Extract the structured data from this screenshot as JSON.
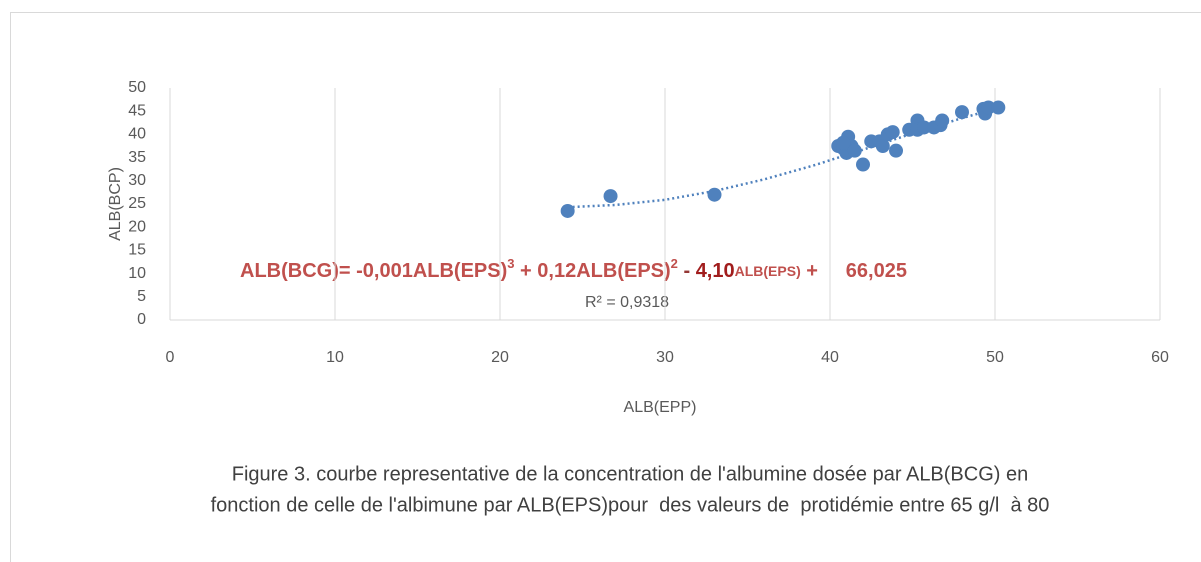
{
  "chart_data": {
    "type": "scatter",
    "xlabel": "ALB(EPP)",
    "ylabel": "ALB(BCP)",
    "xlim": [
      0,
      60
    ],
    "xticks": [
      0,
      10,
      20,
      30,
      40,
      50,
      60
    ],
    "ylim": [
      0,
      50
    ],
    "yticks": [
      0,
      5,
      10,
      15,
      20,
      25,
      30,
      35,
      40,
      45,
      50
    ],
    "grid": "x",
    "series": [
      {
        "color": "#4f81bd",
        "x": [
          24.1,
          26.7,
          33,
          40.5,
          40.8,
          41,
          41,
          41.1,
          41.3,
          41.5,
          42,
          42.5,
          43,
          43.2,
          43.5,
          43.8,
          44,
          44.8,
          45.3,
          45.3,
          45.7,
          46.3,
          46.7,
          46.8,
          48,
          49.3,
          49.4,
          49.6,
          50.2,
          40.8
        ],
        "values": [
          23.5,
          26.7,
          27,
          37.5,
          37,
          36,
          38,
          39.5,
          37.5,
          36.5,
          33.5,
          38.5,
          38.5,
          37.5,
          40,
          40.5,
          36.5,
          41,
          43,
          41,
          41.5,
          41.5,
          42,
          43,
          44.8,
          45.5,
          44.5,
          45.8,
          45.8,
          38.2
        ]
      }
    ],
    "trendline": {
      "color": "#4f81bd",
      "x": [
        24.1,
        27,
        30,
        33,
        36,
        39,
        42,
        45,
        48,
        50.2
      ],
      "values": [
        24.3,
        24.8,
        25.9,
        27.8,
        30.3,
        33.3,
        36.7,
        40.2,
        43.5,
        45.7
      ]
    },
    "equation": [
      "ALB(BCG)= -0,001ALB(EPS)",
      "3",
      " + 0,12ALB(EPS)",
      "2",
      " - ",
      "4,10",
      "ALB(EPS)",
      " +     66,025"
    ],
    "r_squared": "R² = 0,9318",
    "caption": [
      "Figure 3. courbe representative de la concentration de l'albumine dosée par ALB(BCG) en",
      "fonction de celle de l'albimune par ALB(EPS)pour  des valeurs de  protidémie entre 65 g/l  à 80"
    ]
  }
}
